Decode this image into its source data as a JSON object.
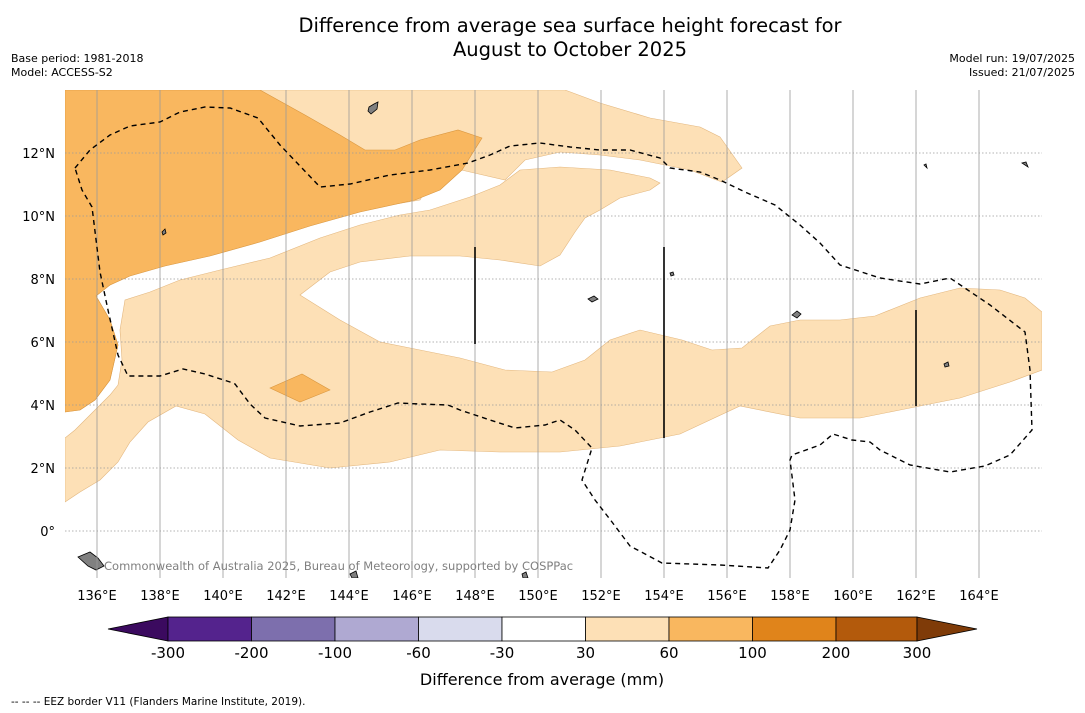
{
  "header": {
    "title_line1": "Difference from average sea surface height forecast for",
    "title_line2": "August to October 2025",
    "base_period": "Base period: 1981-2018",
    "model": "Model: ACCESS-S2",
    "model_run": "Model run: 19/07/2025",
    "issued": "Issued: 21/07/2025"
  },
  "map": {
    "x_ticks": [
      "136°E",
      "138°E",
      "140°E",
      "142°E",
      "144°E",
      "146°E",
      "148°E",
      "150°E",
      "152°E",
      "154°E",
      "156°E",
      "158°E",
      "160°E",
      "162°E",
      "164°E"
    ],
    "y_ticks": [
      "12°N",
      "10°N",
      "8°N",
      "6°N",
      "4°N",
      "2°N",
      "0°"
    ],
    "copyright": "Commonwealth of Australia 2025, Bureau of Meteorology, supported by COSPPac",
    "colors": {
      "band_30_60": "#fde0b6",
      "band_60_100": "#f9b75f",
      "land": "#808080",
      "eez_line": "#000000"
    }
  },
  "colorbar": {
    "labels": [
      "-300",
      "-200",
      "-100",
      "-60",
      "-30",
      "30",
      "60",
      "100",
      "200",
      "300"
    ],
    "colors": [
      "#3b0a5f",
      "#54238d",
      "#7d6fad",
      "#afa9d2",
      "#d9dbed",
      "#ffffff",
      "#fde0b6",
      "#f9b75f",
      "#e0841b",
      "#b35a0c",
      "#7f3b08"
    ],
    "title": "Difference from average (mm)"
  },
  "footer": {
    "legend": "--  --  -- EEZ border V11 (Flanders Marine Institute, 2019)."
  }
}
